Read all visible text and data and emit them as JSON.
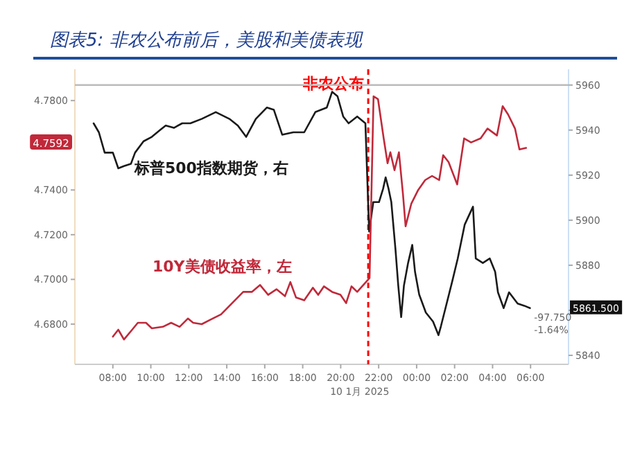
{
  "chart_data": {
    "type": "line",
    "title": "图表5: 非农公布前后，美股和美债表现",
    "xlabel": "10 1月 2025",
    "xlim": [
      "2025-01-10T06:00",
      "2025-01-11T08:00"
    ],
    "xticks": [
      {
        "value": "2025-01-10T08:00",
        "label": "08:00"
      },
      {
        "value": "2025-01-10T10:00",
        "label": "10:00"
      },
      {
        "value": "2025-01-10T12:00",
        "label": "12:00"
      },
      {
        "value": "2025-01-10T14:00",
        "label": "14:00"
      },
      {
        "value": "2025-01-10T16:00",
        "label": "16:00"
      },
      {
        "value": "2025-01-10T18:00",
        "label": "18:00"
      },
      {
        "value": "2025-01-10T20:00",
        "label": "20:00"
      },
      {
        "value": "2025-01-10T22:00",
        "label": "22:00"
      },
      {
        "value": "2025-01-11T00:00",
        "label": "00:00"
      },
      {
        "value": "2025-01-11T02:00",
        "label": "02:00"
      },
      {
        "value": "2025-01-11T04:00",
        "label": "04:00"
      },
      {
        "value": "2025-01-11T06:00",
        "label": "06:00"
      }
    ],
    "ylim": [
      4.662,
      4.794
    ],
    "yticks": [
      {
        "value": 4.68,
        "label": "4.6800"
      },
      {
        "value": 4.7,
        "label": "4.7000"
      },
      {
        "value": 4.72,
        "label": "4.7200"
      },
      {
        "value": 4.74,
        "label": "4.7400"
      },
      {
        "value": 4.78,
        "label": "4.7800"
      }
    ],
    "y2lim": [
      5836,
      5967
    ],
    "y2ticks": [
      5840,
      5860,
      5880,
      5900,
      5920,
      5940,
      5960
    ],
    "ref_lines": [
      {
        "axis": "x",
        "value": "2025-01-10T21:27",
        "label": "非农公布",
        "color": "#ff0000",
        "line_style": "dashed"
      },
      {
        "axis": "y2",
        "value": 5960,
        "label": null,
        "color": "#bbbbbb",
        "line_style": "solid"
      }
    ],
    "annotations": [
      "4.7592",
      "5861.500",
      "-97.750",
      "-1.64%"
    ],
    "legend": false,
    "grid": false,
    "marker": "none",
    "line_style": "solid",
    "series": [
      {
        "name": "标普500指数期货，右",
        "color": "#1a1a1a",
        "axis": "y2",
        "x": [
          "2025-01-10T06:59",
          "2025-01-10T07:16",
          "2025-01-10T07:34",
          "2025-01-10T08:00",
          "2025-01-10T08:17",
          "2025-01-10T08:35",
          "2025-01-10T08:57",
          "2025-01-10T09:10",
          "2025-01-10T09:37",
          "2025-01-10T10:03",
          "2025-01-10T10:29",
          "2025-01-10T10:47",
          "2025-01-10T11:13",
          "2025-01-10T11:39",
          "2025-01-10T12:05",
          "2025-01-10T12:41",
          "2025-01-10T13:25",
          "2025-01-10T14:08",
          "2025-01-10T14:35",
          "2025-01-10T15:01",
          "2025-01-10T15:32",
          "2025-01-10T16:07",
          "2025-01-10T16:29",
          "2025-01-10T16:55",
          "2025-01-10T17:30",
          "2025-01-10T18:05",
          "2025-01-10T18:40",
          "2025-01-10T19:16",
          "2025-01-10T19:33",
          "2025-01-10T19:50",
          "2025-01-10T20:08",
          "2025-01-10T20:25",
          "2025-01-10T20:52",
          "2025-01-10T21:18",
          "2025-01-10T21:30",
          "2025-01-10T21:43",
          "2025-01-10T22:01",
          "2025-01-10T22:14",
          "2025-01-10T22:22",
          "2025-01-10T22:31",
          "2025-01-10T22:40",
          "2025-01-10T22:53",
          "2025-01-10T23:02",
          "2025-01-10T23:11",
          "2025-01-10T23:20",
          "2025-01-10T23:33",
          "2025-01-10T23:46",
          "2025-01-10T23:55",
          "2025-01-11T00:08",
          "2025-01-11T00:29",
          "2025-01-11T00:52",
          "2025-01-11T01:09",
          "2025-01-11T01:17",
          "2025-01-11T01:35",
          "2025-01-11T01:53",
          "2025-01-11T02:10",
          "2025-01-11T02:32",
          "2025-01-11T02:58",
          "2025-01-11T03:07",
          "2025-01-11T03:29",
          "2025-01-11T03:51",
          "2025-01-11T04:08",
          "2025-01-11T04:17",
          "2025-01-11T04:35",
          "2025-01-11T04:52",
          "2025-01-11T05:19",
          "2025-01-11T05:40",
          "2025-01-11T05:58"
        ],
        "values": [
          5943,
          5939,
          5930,
          5930,
          5923,
          5924,
          5925,
          5930,
          5935,
          5937,
          5940,
          5942,
          5941,
          5943,
          5943,
          5945,
          5948,
          5945,
          5942,
          5937,
          5945,
          5950,
          5949,
          5938,
          5939,
          5939,
          5948,
          5950,
          5957,
          5955,
          5946,
          5943,
          5946,
          5943,
          5895,
          5908,
          5908,
          5914,
          5919,
          5914,
          5908,
          5887,
          5871,
          5857,
          5871,
          5881,
          5889,
          5877,
          5867,
          5859,
          5855,
          5849,
          5853,
          5863,
          5873,
          5883,
          5898,
          5906,
          5883,
          5881,
          5883,
          5877,
          5868,
          5861,
          5868,
          5863,
          5862,
          5861
        ]
      },
      {
        "name": "10Y美债收益率，左",
        "color": "#c0293a",
        "x": [
          "2025-01-10T08:00",
          "2025-01-10T08:17",
          "2025-01-10T08:35",
          "2025-01-10T09:01",
          "2025-01-10T09:19",
          "2025-01-10T09:45",
          "2025-01-10T10:03",
          "2025-01-10T10:38",
          "2025-01-10T11:04",
          "2025-01-10T11:31",
          "2025-01-10T11:57",
          "2025-01-10T12:14",
          "2025-01-10T12:41",
          "2025-01-10T13:07",
          "2025-01-10T13:42",
          "2025-01-10T14:17",
          "2025-01-10T14:52",
          "2025-01-10T15:19",
          "2025-01-10T15:45",
          "2025-01-10T16:11",
          "2025-01-10T16:37",
          "2025-01-10T17:04",
          "2025-01-10T17:21",
          "2025-01-10T17:39",
          "2025-01-10T18:05",
          "2025-01-10T18:32",
          "2025-01-10T18:49",
          "2025-01-10T19:07",
          "2025-01-10T19:33",
          "2025-01-10T19:59",
          "2025-01-10T20:17",
          "2025-01-10T20:34",
          "2025-01-10T20:52",
          "2025-01-10T21:31",
          "2025-01-10T21:44",
          "2025-01-10T21:58",
          "2025-01-10T22:16",
          "2025-01-10T22:28",
          "2025-01-10T22:37",
          "2025-01-10T22:50",
          "2025-01-10T23:04",
          "2025-01-10T23:17",
          "2025-01-10T23:25",
          "2025-01-10T23:43",
          "2025-01-11T00:05",
          "2025-01-11T00:27",
          "2025-01-11T00:49",
          "2025-01-11T01:11",
          "2025-01-11T01:24",
          "2025-01-11T01:41",
          "2025-01-11T02:08",
          "2025-01-11T02:30",
          "2025-01-11T02:52",
          "2025-01-11T03:22",
          "2025-01-11T03:44",
          "2025-01-11T04:14",
          "2025-01-11T04:32",
          "2025-01-11T04:49",
          "2025-01-11T05:11",
          "2025-01-11T05:25",
          "2025-01-11T05:46"
        ],
        "values": [
          4.6744,
          4.6775,
          4.6731,
          4.6775,
          4.6806,
          4.6806,
          4.6781,
          4.6788,
          4.6806,
          4.6788,
          4.6825,
          4.6806,
          4.68,
          4.6819,
          4.6844,
          4.6894,
          4.6944,
          4.6944,
          4.6975,
          4.6931,
          4.6956,
          4.6925,
          4.6988,
          4.6919,
          4.6906,
          4.6963,
          4.6931,
          4.6969,
          4.6944,
          4.6931,
          4.6894,
          4.6969,
          4.6944,
          4.7006,
          4.7819,
          4.7806,
          4.7631,
          4.7519,
          4.7569,
          4.7488,
          4.7569,
          4.7381,
          4.7238,
          4.7338,
          4.74,
          4.7444,
          4.7463,
          4.7444,
          4.7556,
          4.7525,
          4.7425,
          4.7631,
          4.7613,
          4.7631,
          4.7675,
          4.7644,
          4.7775,
          4.7738,
          4.7675,
          4.7581,
          4.7588
        ]
      }
    ]
  }
}
